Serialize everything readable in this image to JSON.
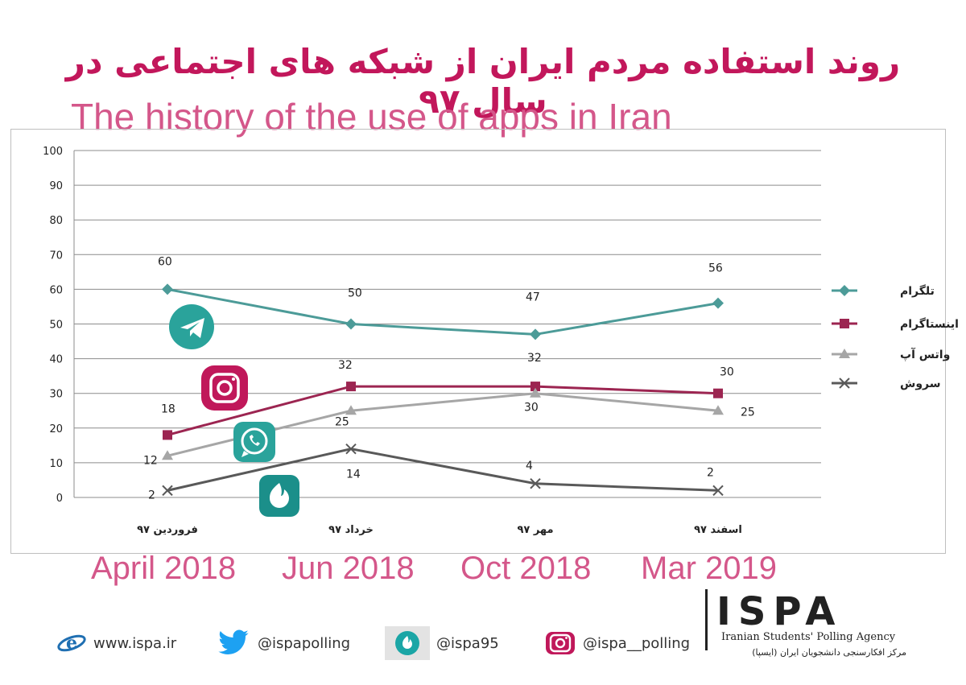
{
  "title_fa": "روند استفاده مردم ایران از شبکه های اجتماعی در سال ۹۷",
  "title_en": "The history of the use of apps in Iran",
  "chart_data": {
    "type": "line",
    "categories": [
      "فروردین ۹۷",
      "خرداد ۹۷",
      "مهر ۹۷",
      "اسفند ۹۷"
    ],
    "date_labels": [
      "April 2018",
      "Jun 2018",
      "Oct 2018",
      "Mar 2019"
    ],
    "ylim": [
      0,
      100
    ],
    "yticks": [
      0,
      10,
      20,
      30,
      40,
      50,
      60,
      70,
      80,
      90,
      100
    ],
    "grid": true,
    "legend_position": "right",
    "series": [
      {
        "name": "تلگرام",
        "values": [
          60,
          50,
          47,
          56
        ],
        "color": "#4c9b98",
        "marker": "diamond",
        "labels": [
          "60",
          "50",
          "47",
          "56"
        ],
        "icon": "telegram-icon"
      },
      {
        "name": "اینستاگرام",
        "values": [
          18,
          32,
          32,
          30
        ],
        "color": "#9c2551",
        "marker": "square",
        "labels": [
          "18",
          "32",
          "32",
          "30"
        ],
        "icon": "instagram-icon"
      },
      {
        "name": "واتس آپ",
        "values": [
          12,
          25,
          30,
          25
        ],
        "color": "#a6a6a6",
        "marker": "triangle",
        "labels": [
          "12",
          "25",
          "30",
          "25"
        ],
        "icon": "whatsapp-icon"
      },
      {
        "name": "سروش",
        "values": [
          2,
          14,
          4,
          2
        ],
        "color": "#595959",
        "marker": "x",
        "labels": [
          "2",
          "14",
          "4",
          "2"
        ],
        "icon": "soroush-icon"
      }
    ]
  },
  "footer": {
    "website": "www.ispa.ir",
    "twitter": "@ispapolling",
    "soroush": "@ispa95",
    "instagram": "@ispa__polling"
  },
  "brand": {
    "logo": "ISPA",
    "subtitle": "Iranian Students' Polling Agency",
    "subtitle_fa": "مرکز افکارسنجی دانشجویان ایران (ایسپا)"
  }
}
